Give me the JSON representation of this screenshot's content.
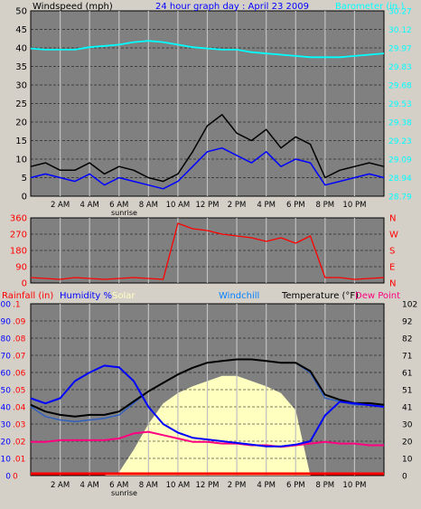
{
  "top": {
    "title_left": "Windspeed (mph)",
    "title_center": "24 hour graph day : April 23 2009",
    "title_right": "Barometer (in.)",
    "left_ticks": [
      "50",
      "45",
      "40",
      "35",
      "30",
      "25",
      "20",
      "15",
      "10",
      "5",
      "0"
    ],
    "right_ticks": [
      "30.27",
      "30.12",
      "29.97",
      "29.83",
      "29.68",
      "29.53",
      "29.38",
      "29.23",
      "29.09",
      "28.94",
      "28.79"
    ]
  },
  "time_labels": [
    "2 AM",
    "4 AM",
    "6 AM",
    "8 AM",
    "10 AM",
    "12 PM",
    "2 PM",
    "4 PM",
    "6 PM",
    "8 PM",
    "10 PM"
  ],
  "sunrise_label": "sunrise",
  "middle": {
    "left_ticks": [
      "360",
      "270",
      "180",
      "90",
      "0"
    ],
    "right_ticks": [
      "N",
      "W",
      "S",
      "E",
      "N"
    ]
  },
  "bottom": {
    "legend": {
      "rainfall": "Rainfall (in)",
      "humidity": "Humidity %",
      "solar": "Solar",
      "windchill": "Windchill",
      "temperature": "Temperature (°F)",
      "dewpoint": "Dew Point"
    },
    "humidity_ticks": [
      "100",
      "90",
      "80",
      "70",
      "60",
      "50",
      "40",
      "30",
      "20",
      "10",
      "0"
    ],
    "rain_ticks": [
      ".1",
      ".09",
      ".08",
      ".07",
      ".06",
      ".05",
      ".04",
      ".03",
      ".02",
      ".01",
      "0"
    ],
    "temp_ticks": [
      "102",
      "92",
      "82",
      "71",
      "61",
      "51",
      "41",
      "30",
      "20",
      "10",
      "0"
    ]
  },
  "colors": {
    "wind_avg": "#0000ff",
    "wind_gust": "#000000",
    "barometer": "#00ffff",
    "direction": "#ff0000",
    "humidity": "#0000ff",
    "temperature": "#000000",
    "windchill": "#0000ff",
    "dewpoint": "#ff0080",
    "solar": "#ffffc0",
    "rainfall": "#ff0000"
  },
  "chart_data": [
    {
      "type": "line",
      "title": "24 hour graph day : April 23 2009",
      "xlabel": "",
      "ylabel": "Windspeed (mph)",
      "ylim": [
        0,
        50
      ],
      "y2label": "Barometer (in.)",
      "y2lim": [
        28.79,
        30.27
      ],
      "x": [
        0,
        1,
        2,
        3,
        4,
        5,
        6,
        7,
        8,
        9,
        10,
        11,
        12,
        13,
        14,
        15,
        16,
        17,
        18,
        19,
        20,
        21,
        22,
        23,
        24
      ],
      "series": [
        {
          "name": "Windspeed (mph)",
          "axis": "left",
          "values": [
            5,
            6,
            5,
            4,
            6,
            3,
            5,
            4,
            3,
            2,
            4,
            8,
            12,
            13,
            11,
            9,
            12,
            8,
            10,
            9,
            3,
            4,
            5,
            6,
            5
          ]
        },
        {
          "name": "wind gust",
          "axis": "left",
          "values": [
            8,
            9,
            7,
            7,
            9,
            6,
            8,
            7,
            5,
            4,
            6,
            12,
            19,
            22,
            17,
            15,
            18,
            13,
            16,
            14,
            5,
            7,
            8,
            9,
            8
          ]
        },
        {
          "name": "Barometer (in.)",
          "axis": "right",
          "values": [
            29.97,
            29.96,
            29.96,
            29.96,
            29.98,
            29.99,
            30.0,
            30.02,
            30.03,
            30.02,
            30.0,
            29.98,
            29.97,
            29.96,
            29.96,
            29.94,
            29.93,
            29.92,
            29.91,
            29.9,
            29.9,
            29.9,
            29.91,
            29.92,
            29.93
          ]
        }
      ]
    },
    {
      "type": "line",
      "ylabel": "wind direction",
      "ylim": [
        0,
        360
      ],
      "x": [
        0,
        1,
        2,
        3,
        4,
        5,
        6,
        7,
        8,
        9,
        10,
        11,
        12,
        13,
        14,
        15,
        16,
        17,
        18,
        19,
        20,
        21,
        22,
        23,
        24
      ],
      "series": [
        {
          "name": "wind direction",
          "values": [
            30,
            25,
            20,
            30,
            25,
            20,
            25,
            30,
            25,
            20,
            330,
            300,
            290,
            270,
            260,
            250,
            230,
            250,
            220,
            260,
            30,
            30,
            20,
            25,
            30
          ]
        }
      ]
    },
    {
      "type": "line",
      "ylabel": "Humidity %",
      "ylim": [
        0,
        100
      ],
      "y2label": "Temperature (°F)",
      "y2lim": [
        0,
        102
      ],
      "x": [
        0,
        1,
        2,
        3,
        4,
        5,
        6,
        7,
        8,
        9,
        10,
        11,
        12,
        13,
        14,
        15,
        16,
        17,
        18,
        19,
        20,
        21,
        22,
        23,
        24
      ],
      "series": [
        {
          "name": "Humidity %",
          "axis": "left",
          "values": [
            45,
            42,
            45,
            55,
            60,
            64,
            63,
            55,
            40,
            30,
            25,
            22,
            21,
            20,
            19,
            18,
            17,
            17,
            18,
            20,
            35,
            43,
            42,
            41,
            40
          ]
        },
        {
          "name": "Temperature (°F)",
          "axis": "right",
          "values": [
            42,
            38,
            36,
            35,
            36,
            36,
            38,
            44,
            50,
            55,
            60,
            64,
            67,
            68,
            69,
            69,
            68,
            67,
            67,
            62,
            48,
            45,
            43,
            43,
            42
          ]
        },
        {
          "name": "Windchill",
          "axis": "right",
          "values": [
            41,
            35,
            33,
            32,
            33,
            34,
            36,
            43,
            50,
            55,
            60,
            64,
            67,
            68,
            69,
            69,
            68,
            67,
            67,
            61,
            46,
            44,
            42,
            42,
            41
          ]
        },
        {
          "name": "Dew Point",
          "axis": "right",
          "values": [
            20,
            20,
            21,
            21,
            21,
            21,
            22,
            25,
            26,
            24,
            22,
            20,
            20,
            19,
            19,
            18,
            18,
            17,
            18,
            19,
            20,
            19,
            19,
            18,
            18
          ]
        },
        {
          "name": "Solar",
          "axis": "left",
          "values": [
            0,
            0,
            0,
            0,
            0,
            0,
            2,
            15,
            30,
            42,
            48,
            52,
            55,
            58,
            58,
            55,
            52,
            48,
            38,
            0,
            0,
            0,
            0,
            0,
            0
          ]
        },
        {
          "name": "Rainfall (in)",
          "axis": "left",
          "values": [
            0,
            0,
            0,
            0,
            0,
            0,
            0,
            0,
            0,
            0,
            0,
            0,
            0,
            0,
            0,
            0,
            0,
            0,
            0,
            0,
            0,
            0,
            0,
            0,
            0
          ]
        }
      ]
    }
  ]
}
